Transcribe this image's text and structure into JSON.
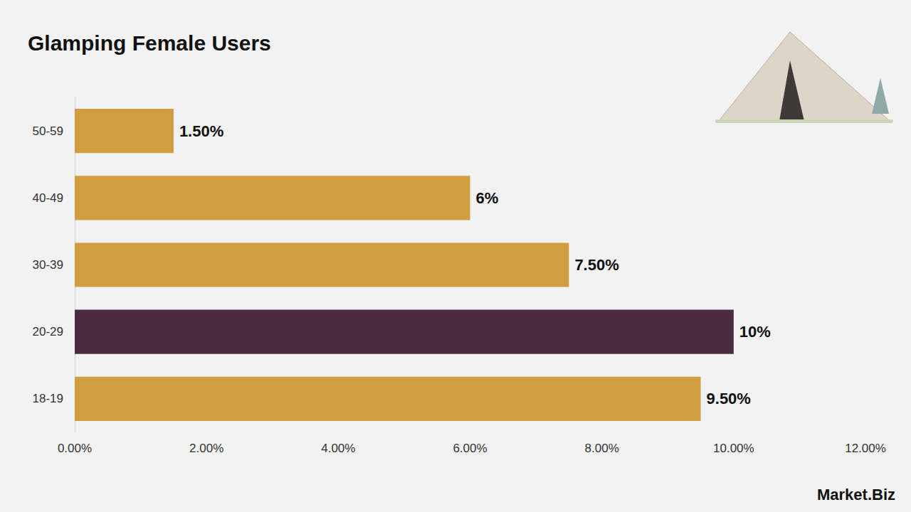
{
  "chart_data": {
    "type": "bar",
    "title": "Glamping Female Users",
    "orientation": "horizontal",
    "categories": [
      "18-19",
      "20-29",
      "30-39",
      "40-49",
      "50-59"
    ],
    "values": [
      9.5,
      10,
      7.5,
      6,
      1.5
    ],
    "value_labels": [
      "9.50%",
      "10%",
      "7.50%",
      "6%",
      "1.50%"
    ],
    "colors": [
      "#d09e41",
      "#4a2b40",
      "#d09e41",
      "#d09e41",
      "#d09e41"
    ],
    "data_labels": true,
    "xlim": [
      0,
      12
    ],
    "xticks": [
      {
        "value": 0,
        "label": "0.00%"
      },
      {
        "value": 2,
        "label": "2.00%"
      },
      {
        "value": 4,
        "label": "4.00%"
      },
      {
        "value": 6,
        "label": "6.00%"
      },
      {
        "value": 8,
        "label": "8.00%"
      },
      {
        "value": 10,
        "label": "10.00%"
      },
      {
        "value": 12,
        "label": "12.00%"
      }
    ],
    "grid": false,
    "annotations": [
      "Market.Biz"
    ]
  }
}
